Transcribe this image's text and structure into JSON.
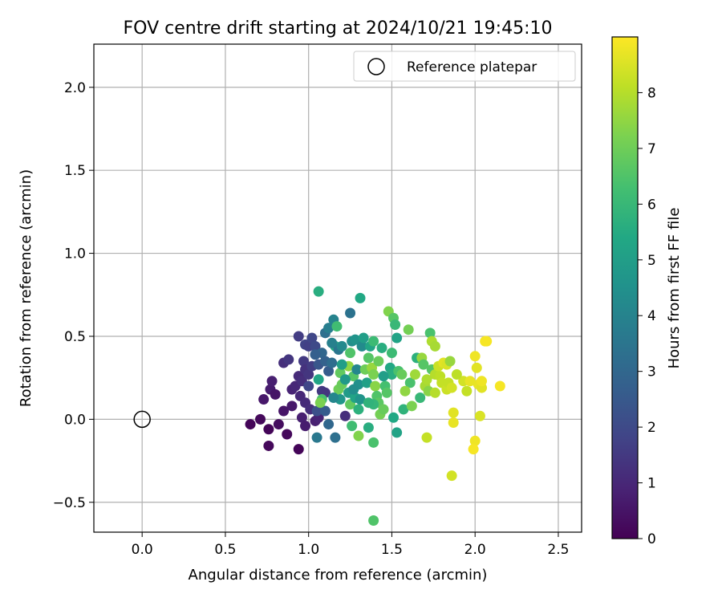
{
  "chart_data": {
    "type": "scatter",
    "title": "FOV centre drift starting at 2024/10/21 19:45:10",
    "xlabel": "Angular distance from reference (arcmin)",
    "ylabel": "Rotation from reference (arcmin)",
    "xlim": [
      -0.29,
      2.64
    ],
    "ylim": [
      -0.68,
      2.26
    ],
    "x_ticks": [
      0.0,
      0.5,
      1.0,
      1.5,
      2.0,
      2.5
    ],
    "x_tick_labels": [
      "0.0",
      "0.5",
      "1.0",
      "1.5",
      "2.0",
      "2.5"
    ],
    "y_ticks": [
      -0.5,
      0.0,
      0.5,
      1.0,
      1.5,
      2.0
    ],
    "y_tick_labels": [
      "−0.5",
      "0.0",
      "0.5",
      "1.0",
      "1.5",
      "2.0"
    ],
    "grid": true,
    "legend": {
      "position": "top-right",
      "entries": [
        "Reference platepar"
      ]
    },
    "reference_point": {
      "name": "Reference platepar",
      "x": 0.0,
      "y": 0.0
    },
    "colorbar": {
      "label": "Hours from first FF file",
      "colormap": "viridis",
      "range": [
        0,
        9.0
      ],
      "ticks": [
        0,
        1,
        2,
        3,
        4,
        5,
        6,
        7,
        8
      ],
      "tick_labels": [
        "0",
        "1",
        "2",
        "3",
        "4",
        "5",
        "6",
        "7",
        "8"
      ]
    },
    "points": [
      {
        "x": 0.65,
        "y": -0.03,
        "h": 0.1
      },
      {
        "x": 0.71,
        "y": 0.0,
        "h": 0.2
      },
      {
        "x": 0.76,
        "y": -0.06,
        "h": 0.1
      },
      {
        "x": 0.76,
        "y": -0.16,
        "h": 0.2
      },
      {
        "x": 0.82,
        "y": -0.03,
        "h": 0.3
      },
      {
        "x": 0.87,
        "y": -0.09,
        "h": 0.2
      },
      {
        "x": 0.94,
        "y": -0.18,
        "h": 0.1
      },
      {
        "x": 0.85,
        "y": 0.05,
        "h": 0.5
      },
      {
        "x": 0.73,
        "y": 0.12,
        "h": 0.6
      },
      {
        "x": 0.77,
        "y": 0.18,
        "h": 0.7
      },
      {
        "x": 0.78,
        "y": 0.23,
        "h": 0.8
      },
      {
        "x": 0.8,
        "y": 0.15,
        "h": 0.5
      },
      {
        "x": 0.85,
        "y": 0.34,
        "h": 1.2
      },
      {
        "x": 0.88,
        "y": 0.36,
        "h": 1.4
      },
      {
        "x": 0.9,
        "y": 0.18,
        "h": 0.9
      },
      {
        "x": 0.92,
        "y": 0.2,
        "h": 1.0
      },
      {
        "x": 0.94,
        "y": 0.26,
        "h": 1.1
      },
      {
        "x": 0.96,
        "y": 0.23,
        "h": 1.2
      },
      {
        "x": 0.94,
        "y": 0.5,
        "h": 1.6
      },
      {
        "x": 0.98,
        "y": 0.45,
        "h": 1.8
      },
      {
        "x": 1.0,
        "y": 0.44,
        "h": 1.7
      },
      {
        "x": 1.02,
        "y": 0.49,
        "h": 1.9
      },
      {
        "x": 1.04,
        "y": 0.44,
        "h": 2.0
      },
      {
        "x": 0.97,
        "y": 0.35,
        "h": 1.5
      },
      {
        "x": 0.98,
        "y": 0.3,
        "h": 1.3
      },
      {
        "x": 1.0,
        "y": 0.27,
        "h": 1.4
      },
      {
        "x": 1.02,
        "y": 0.32,
        "h": 1.6
      },
      {
        "x": 0.95,
        "y": 0.14,
        "h": 1.0
      },
      {
        "x": 0.98,
        "y": 0.1,
        "h": 1.1
      },
      {
        "x": 1.01,
        "y": 0.06,
        "h": 1.2
      },
      {
        "x": 0.96,
        "y": 0.01,
        "h": 0.8
      },
      {
        "x": 0.98,
        "y": -0.04,
        "h": 0.7
      },
      {
        "x": 1.04,
        "y": -0.01,
        "h": 0.8
      },
      {
        "x": 1.06,
        "y": 0.01,
        "h": 0.9
      },
      {
        "x": 1.08,
        "y": 0.17,
        "h": 1.5
      },
      {
        "x": 1.1,
        "y": 0.16,
        "h": 1.4
      },
      {
        "x": 1.05,
        "y": 0.05,
        "h": 2.2
      },
      {
        "x": 1.1,
        "y": 0.05,
        "h": 2.6
      },
      {
        "x": 1.12,
        "y": -0.03,
        "h": 3.0
      },
      {
        "x": 1.05,
        "y": -0.11,
        "h": 3.6
      },
      {
        "x": 1.16,
        "y": -0.11,
        "h": 3.3
      },
      {
        "x": 1.22,
        "y": 0.02,
        "h": 1.2
      },
      {
        "x": 1.06,
        "y": 0.33,
        "h": 2.4
      },
      {
        "x": 1.08,
        "y": 0.4,
        "h": 3.0
      },
      {
        "x": 1.1,
        "y": 0.35,
        "h": 2.8
      },
      {
        "x": 1.12,
        "y": 0.29,
        "h": 2.6
      },
      {
        "x": 1.14,
        "y": 0.34,
        "h": 3.2
      },
      {
        "x": 1.06,
        "y": 0.24,
        "h": 5.3
      },
      {
        "x": 1.08,
        "y": 0.12,
        "h": 6.4
      },
      {
        "x": 1.07,
        "y": 0.1,
        "h": 7.2
      },
      {
        "x": 1.1,
        "y": 0.52,
        "h": 3.3
      },
      {
        "x": 1.12,
        "y": 0.55,
        "h": 3.8
      },
      {
        "x": 1.15,
        "y": 0.6,
        "h": 4.0
      },
      {
        "x": 1.17,
        "y": 0.56,
        "h": 6.2
      },
      {
        "x": 1.16,
        "y": 0.44,
        "h": 5.5
      },
      {
        "x": 1.18,
        "y": 0.42,
        "h": 3.5
      },
      {
        "x": 1.2,
        "y": 0.44,
        "h": 4.2
      },
      {
        "x": 1.19,
        "y": 0.28,
        "h": 6.8
      },
      {
        "x": 1.18,
        "y": 0.18,
        "h": 7.0
      },
      {
        "x": 1.2,
        "y": 0.21,
        "h": 6.9
      },
      {
        "x": 1.19,
        "y": 0.12,
        "h": 4.7
      },
      {
        "x": 1.24,
        "y": 0.16,
        "h": 4.9
      },
      {
        "x": 1.25,
        "y": 0.64,
        "h": 3.4
      },
      {
        "x": 1.26,
        "y": 0.47,
        "h": 4.4
      },
      {
        "x": 1.28,
        "y": 0.48,
        "h": 4.6
      },
      {
        "x": 1.25,
        "y": 0.4,
        "h": 6.5
      },
      {
        "x": 1.24,
        "y": 0.32,
        "h": 7.5
      },
      {
        "x": 1.27,
        "y": 0.26,
        "h": 6.6
      },
      {
        "x": 1.25,
        "y": 0.09,
        "h": 6.8
      },
      {
        "x": 1.28,
        "y": 0.13,
        "h": 5.2
      },
      {
        "x": 1.3,
        "y": 0.06,
        "h": 5.7
      },
      {
        "x": 1.29,
        "y": 0.3,
        "h": 4.1
      },
      {
        "x": 1.3,
        "y": 0.21,
        "h": 4.5
      },
      {
        "x": 1.32,
        "y": 0.44,
        "h": 4.3
      },
      {
        "x": 1.33,
        "y": 0.49,
        "h": 5.0
      },
      {
        "x": 1.31,
        "y": 0.73,
        "h": 5.4
      },
      {
        "x": 1.26,
        "y": -0.04,
        "h": 6.2
      },
      {
        "x": 1.3,
        "y": -0.1,
        "h": 7.3
      },
      {
        "x": 1.36,
        "y": -0.05,
        "h": 5.6
      },
      {
        "x": 1.39,
        "y": -0.14,
        "h": 6.4
      },
      {
        "x": 1.34,
        "y": 0.3,
        "h": 7.0
      },
      {
        "x": 1.35,
        "y": 0.22,
        "h": 5.1
      },
      {
        "x": 1.36,
        "y": 0.37,
        "h": 6.6
      },
      {
        "x": 1.37,
        "y": 0.44,
        "h": 5.3
      },
      {
        "x": 1.39,
        "y": 0.47,
        "h": 6.1
      },
      {
        "x": 1.38,
        "y": 0.31,
        "h": 7.6
      },
      {
        "x": 1.39,
        "y": 0.27,
        "h": 7.2
      },
      {
        "x": 1.4,
        "y": 0.2,
        "h": 7.4
      },
      {
        "x": 1.41,
        "y": 0.14,
        "h": 6.5
      },
      {
        "x": 1.42,
        "y": 0.1,
        "h": 6.7
      },
      {
        "x": 1.43,
        "y": 0.03,
        "h": 7.1
      },
      {
        "x": 1.39,
        "y": 0.09,
        "h": 5.9
      },
      {
        "x": 1.45,
        "y": 0.06,
        "h": 6.9
      },
      {
        "x": 1.44,
        "y": 0.43,
        "h": 5.6
      },
      {
        "x": 1.46,
        "y": 0.2,
        "h": 6.3
      },
      {
        "x": 1.47,
        "y": 0.16,
        "h": 6.6
      },
      {
        "x": 1.49,
        "y": 0.31,
        "h": 5.4
      },
      {
        "x": 1.5,
        "y": 0.27,
        "h": 5.6
      },
      {
        "x": 1.5,
        "y": 0.4,
        "h": 6.1
      },
      {
        "x": 1.48,
        "y": 0.65,
        "h": 7.3
      },
      {
        "x": 1.51,
        "y": 0.61,
        "h": 6.6
      },
      {
        "x": 1.52,
        "y": 0.57,
        "h": 6.0
      },
      {
        "x": 1.53,
        "y": 0.49,
        "h": 5.2
      },
      {
        "x": 1.51,
        "y": 0.01,
        "h": 5.4
      },
      {
        "x": 1.53,
        "y": -0.08,
        "h": 5.2
      },
      {
        "x": 1.54,
        "y": 0.29,
        "h": 6.4
      },
      {
        "x": 1.56,
        "y": 0.27,
        "h": 6.9
      },
      {
        "x": 1.57,
        "y": 0.06,
        "h": 5.8
      },
      {
        "x": 1.6,
        "y": 0.54,
        "h": 7.1
      },
      {
        "x": 1.62,
        "y": 0.08,
        "h": 7.2
      },
      {
        "x": 1.61,
        "y": 0.22,
        "h": 6.4
      },
      {
        "x": 1.65,
        "y": 0.37,
        "h": 5.7
      },
      {
        "x": 1.67,
        "y": 0.13,
        "h": 6.0
      },
      {
        "x": 1.68,
        "y": 0.37,
        "h": 7.6
      },
      {
        "x": 1.69,
        "y": 0.33,
        "h": 6.6
      },
      {
        "x": 1.7,
        "y": 0.2,
        "h": 7.8
      },
      {
        "x": 1.72,
        "y": 0.17,
        "h": 7.4
      },
      {
        "x": 1.71,
        "y": -0.11,
        "h": 8.2
      },
      {
        "x": 1.73,
        "y": 0.52,
        "h": 6.4
      },
      {
        "x": 1.74,
        "y": 0.47,
        "h": 7.9
      },
      {
        "x": 1.76,
        "y": 0.44,
        "h": 7.8
      },
      {
        "x": 1.74,
        "y": 0.3,
        "h": 6.6
      },
      {
        "x": 1.76,
        "y": 0.27,
        "h": 8.0
      },
      {
        "x": 1.78,
        "y": 0.32,
        "h": 8.3
      },
      {
        "x": 1.79,
        "y": 0.26,
        "h": 8.1
      },
      {
        "x": 1.8,
        "y": 0.22,
        "h": 8.2
      },
      {
        "x": 1.76,
        "y": 0.16,
        "h": 8.0
      },
      {
        "x": 1.81,
        "y": 0.34,
        "h": 8.6
      },
      {
        "x": 1.83,
        "y": 0.33,
        "h": 8.5
      },
      {
        "x": 1.83,
        "y": 0.18,
        "h": 8.3
      },
      {
        "x": 1.84,
        "y": 0.22,
        "h": 8.2
      },
      {
        "x": 1.86,
        "y": 0.19,
        "h": 8.4
      },
      {
        "x": 1.85,
        "y": 0.35,
        "h": 7.6
      },
      {
        "x": 1.87,
        "y": 0.04,
        "h": 8.6
      },
      {
        "x": 1.87,
        "y": -0.02,
        "h": 8.7
      },
      {
        "x": 1.86,
        "y": -0.34,
        "h": 8.4
      },
      {
        "x": 1.93,
        "y": 0.23,
        "h": 8.4
      },
      {
        "x": 1.95,
        "y": 0.17,
        "h": 8.2
      },
      {
        "x": 1.97,
        "y": 0.23,
        "h": 8.7
      },
      {
        "x": 2.0,
        "y": 0.38,
        "h": 8.8
      },
      {
        "x": 2.01,
        "y": 0.31,
        "h": 8.6
      },
      {
        "x": 2.02,
        "y": 0.21,
        "h": 8.7
      },
      {
        "x": 2.04,
        "y": 0.19,
        "h": 8.6
      },
      {
        "x": 2.04,
        "y": 0.23,
        "h": 8.8
      },
      {
        "x": 2.03,
        "y": 0.02,
        "h": 8.5
      },
      {
        "x": 2.0,
        "y": -0.13,
        "h": 8.8
      },
      {
        "x": 1.99,
        "y": -0.18,
        "h": 8.9
      },
      {
        "x": 2.06,
        "y": 0.47,
        "h": 8.9
      },
      {
        "x": 2.07,
        "y": 0.47,
        "h": 8.9
      },
      {
        "x": 2.15,
        "y": 0.2,
        "h": 8.9
      },
      {
        "x": 1.06,
        "y": 0.77,
        "h": 5.6
      },
      {
        "x": 1.39,
        "y": -0.61,
        "h": 6.5
      },
      {
        "x": 1.14,
        "y": 0.46,
        "h": 3.9
      },
      {
        "x": 1.22,
        "y": 0.24,
        "h": 4.8
      },
      {
        "x": 1.27,
        "y": 0.18,
        "h": 4.4
      },
      {
        "x": 1.31,
        "y": 0.12,
        "h": 4.6
      },
      {
        "x": 1.15,
        "y": 0.13,
        "h": 4.1
      },
      {
        "x": 1.2,
        "y": 0.33,
        "h": 5.0
      },
      {
        "x": 1.04,
        "y": 0.39,
        "h": 2.7
      },
      {
        "x": 1.0,
        "y": 0.2,
        "h": 1.9
      },
      {
        "x": 0.9,
        "y": 0.08,
        "h": 0.6
      },
      {
        "x": 1.36,
        "y": 0.1,
        "h": 5.8
      },
      {
        "x": 1.42,
        "y": 0.35,
        "h": 6.9
      },
      {
        "x": 1.45,
        "y": 0.26,
        "h": 5.0
      },
      {
        "x": 1.58,
        "y": 0.17,
        "h": 7.5
      },
      {
        "x": 1.64,
        "y": 0.27,
        "h": 7.7
      },
      {
        "x": 1.89,
        "y": 0.27,
        "h": 8.1
      },
      {
        "x": 1.71,
        "y": 0.24,
        "h": 7.9
      }
    ]
  }
}
